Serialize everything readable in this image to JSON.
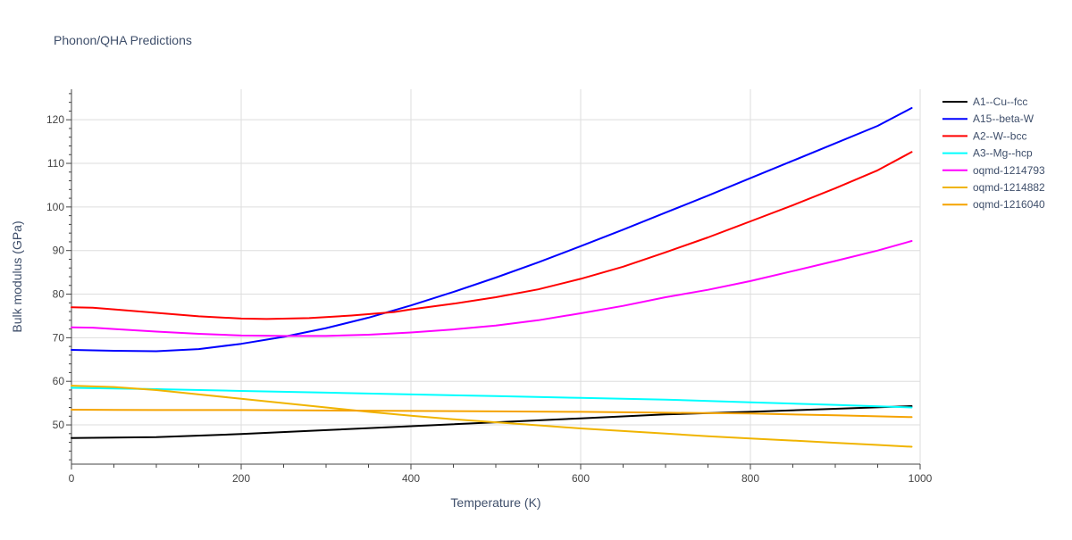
{
  "chart_data": {
    "type": "line",
    "title": "Phonon/QHA Predictions",
    "xlabel": "Temperature (K)",
    "ylabel": "Bulk modulus (GPa)",
    "xlim": [
      0,
      1000
    ],
    "ylim": [
      41,
      127
    ],
    "xticks": [
      0,
      200,
      400,
      600,
      800,
      1000
    ],
    "yticks": [
      50,
      60,
      70,
      80,
      90,
      100,
      110,
      120
    ],
    "legend_position": "top-right",
    "series": [
      {
        "name": "A1--Cu--fcc",
        "color": "#000000",
        "x": [
          0,
          100,
          200,
          300,
          400,
          500,
          600,
          700,
          800,
          900,
          990
        ],
        "y": [
          47.0,
          47.2,
          47.9,
          48.8,
          49.7,
          50.6,
          51.5,
          52.4,
          53.0,
          53.7,
          54.3
        ]
      },
      {
        "name": "A15--beta-W",
        "color": "#0000ff",
        "x": [
          0,
          50,
          100,
          150,
          200,
          250,
          300,
          350,
          400,
          450,
          500,
          550,
          600,
          650,
          700,
          750,
          800,
          850,
          900,
          950,
          990
        ],
        "y": [
          67.2,
          67.0,
          66.9,
          67.4,
          68.6,
          70.2,
          72.2,
          74.6,
          77.4,
          80.5,
          83.8,
          87.3,
          91.0,
          94.8,
          98.7,
          102.6,
          106.6,
          110.6,
          114.6,
          118.6,
          122.7
        ]
      },
      {
        "name": "A2--W--bcc",
        "color": "#ff0000",
        "x": [
          0,
          25,
          50,
          100,
          150,
          200,
          230,
          280,
          330,
          380,
          400,
          450,
          500,
          550,
          600,
          650,
          700,
          750,
          800,
          850,
          900,
          950,
          990
        ],
        "y": [
          77.0,
          76.9,
          76.5,
          75.7,
          74.9,
          74.4,
          74.3,
          74.5,
          75.1,
          75.9,
          76.5,
          77.8,
          79.3,
          81.1,
          83.5,
          86.3,
          89.6,
          93.0,
          96.7,
          100.4,
          104.3,
          108.4,
          112.6
        ]
      },
      {
        "name": "A3--Mg--hcp",
        "color": "#00ffff",
        "x": [
          0,
          100,
          200,
          300,
          400,
          500,
          600,
          700,
          800,
          900,
          990
        ],
        "y": [
          58.5,
          58.2,
          57.8,
          57.4,
          57.0,
          56.6,
          56.2,
          55.8,
          55.2,
          54.6,
          54.0
        ]
      },
      {
        "name": "oqmd-1214793",
        "color": "#ff00ff",
        "x": [
          0,
          25,
          50,
          100,
          150,
          200,
          250,
          300,
          350,
          400,
          450,
          500,
          550,
          600,
          650,
          700,
          750,
          800,
          850,
          900,
          950,
          990
        ],
        "y": [
          72.4,
          72.3,
          72.0,
          71.4,
          70.9,
          70.5,
          70.4,
          70.4,
          70.7,
          71.2,
          71.9,
          72.8,
          74.0,
          75.6,
          77.3,
          79.3,
          81.0,
          83.0,
          85.3,
          87.6,
          90.0,
          92.2
        ]
      },
      {
        "name": "oqmd-1214882",
        "color": "#f0b400",
        "x": [
          0,
          50,
          100,
          150,
          200,
          250,
          300,
          350,
          400,
          450,
          500,
          550,
          600,
          650,
          700,
          750,
          800,
          850,
          900,
          950,
          990
        ],
        "y": [
          59.0,
          58.7,
          58.0,
          57.0,
          56.0,
          55.0,
          54.0,
          53.0,
          52.1,
          51.3,
          50.6,
          49.9,
          49.2,
          48.6,
          48.0,
          47.4,
          46.9,
          46.4,
          45.9,
          45.4,
          45.0
        ]
      },
      {
        "name": "oqmd-1216040",
        "color": "#f5a300",
        "x": [
          0,
          100,
          200,
          300,
          400,
          500,
          600,
          700,
          800,
          900,
          990
        ],
        "y": [
          53.5,
          53.4,
          53.4,
          53.3,
          53.2,
          53.1,
          53.0,
          52.8,
          52.6,
          52.2,
          51.8
        ]
      }
    ]
  }
}
